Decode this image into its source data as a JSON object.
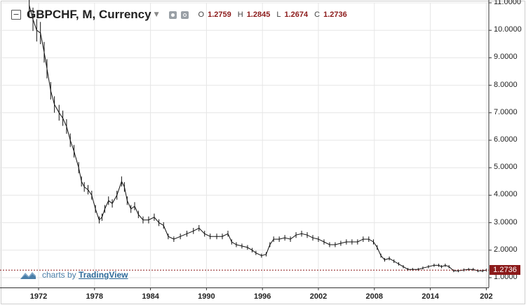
{
  "header": {
    "symbol_title": "GBPCHF, M, Currency",
    "ohlc": {
      "o_label": "O",
      "o_value": "1.2759",
      "h_label": "H",
      "h_value": "1.2845",
      "l_label": "L",
      "l_value": "1.2674",
      "c_label": "C",
      "c_value": "1.2736"
    },
    "icons": [
      "collapse-icon",
      "dropdown-caret-icon",
      "eye-icon",
      "gear-icon"
    ]
  },
  "watermark": {
    "prefix": "charts by",
    "brand": "TradingView",
    "icon": "tradingview-logo-icon"
  },
  "current_price": "1.2736",
  "colors": {
    "candles": "#111111",
    "current_line": "#8b1a1a",
    "badge": "#8b1a1a",
    "ohlc_values": "#8b1a1a",
    "grid": "#e6e6e6",
    "brand": "#2d6a9a"
  },
  "chart_data": {
    "type": "line",
    "title": "GBPCHF, M, Currency",
    "xlabel": "",
    "ylabel": "",
    "x_ticks": [
      "1972",
      "1978",
      "1984",
      "1990",
      "1996",
      "2002",
      "2008",
      "2014",
      "202"
    ],
    "y_ticks": [
      "11.0000",
      "10.0000",
      "9.0000",
      "8.0000",
      "7.0000",
      "6.0000",
      "5.0000",
      "4.0000",
      "3.0000",
      "2.0000",
      "1.0000"
    ],
    "xlim": [
      1970.0,
      2020.2
    ],
    "ylim": [
      0.9,
      11.0
    ],
    "grid": true,
    "current_value": 1.2736,
    "series": [
      {
        "values": [
          [
            1971.0,
            10.9
          ],
          [
            1971.4,
            10.4
          ],
          [
            1971.8,
            10.0
          ],
          [
            1972.2,
            9.9
          ],
          [
            1972.6,
            9.2
          ],
          [
            1972.9,
            8.6
          ],
          [
            1973.3,
            7.8
          ],
          [
            1973.7,
            7.3
          ],
          [
            1974.2,
            7.0
          ],
          [
            1974.6,
            6.8
          ],
          [
            1975.0,
            6.5
          ],
          [
            1975.4,
            6.0
          ],
          [
            1975.8,
            5.6
          ],
          [
            1976.3,
            5.0
          ],
          [
            1976.6,
            4.5
          ],
          [
            1976.9,
            4.3
          ],
          [
            1977.3,
            4.2
          ],
          [
            1977.7,
            4.0
          ],
          [
            1978.1,
            3.5
          ],
          [
            1978.5,
            3.1
          ],
          [
            1978.8,
            3.2
          ],
          [
            1979.1,
            3.5
          ],
          [
            1979.5,
            3.8
          ],
          [
            1979.9,
            3.7
          ],
          [
            1980.4,
            4.0
          ],
          [
            1980.9,
            4.5
          ],
          [
            1981.2,
            4.3
          ],
          [
            1981.5,
            3.8
          ],
          [
            1981.9,
            3.5
          ],
          [
            1982.3,
            3.6
          ],
          [
            1982.7,
            3.3
          ],
          [
            1983.2,
            3.1
          ],
          [
            1983.8,
            3.1
          ],
          [
            1984.4,
            3.2
          ],
          [
            1984.9,
            3.0
          ],
          [
            1985.4,
            2.9
          ],
          [
            1985.9,
            2.5
          ],
          [
            1986.5,
            2.4
          ],
          [
            1987.2,
            2.5
          ],
          [
            1987.9,
            2.6
          ],
          [
            1988.6,
            2.7
          ],
          [
            1989.2,
            2.8
          ],
          [
            1989.8,
            2.6
          ],
          [
            1990.4,
            2.5
          ],
          [
            1991.1,
            2.5
          ],
          [
            1991.7,
            2.5
          ],
          [
            1992.3,
            2.6
          ],
          [
            1992.7,
            2.3
          ],
          [
            1993.2,
            2.2
          ],
          [
            1993.8,
            2.15
          ],
          [
            1994.4,
            2.1
          ],
          [
            1994.9,
            2.0
          ],
          [
            1995.3,
            1.9
          ],
          [
            1995.9,
            1.8
          ],
          [
            1996.4,
            1.85
          ],
          [
            1996.8,
            2.2
          ],
          [
            1997.2,
            2.4
          ],
          [
            1997.8,
            2.4
          ],
          [
            1998.4,
            2.45
          ],
          [
            1999.0,
            2.4
          ],
          [
            1999.6,
            2.55
          ],
          [
            2000.2,
            2.6
          ],
          [
            2000.8,
            2.55
          ],
          [
            2001.4,
            2.45
          ],
          [
            2002.0,
            2.4
          ],
          [
            2002.6,
            2.3
          ],
          [
            2003.2,
            2.2
          ],
          [
            2003.8,
            2.2
          ],
          [
            2004.4,
            2.25
          ],
          [
            2005.0,
            2.3
          ],
          [
            2005.6,
            2.3
          ],
          [
            2006.2,
            2.3
          ],
          [
            2006.8,
            2.4
          ],
          [
            2007.4,
            2.4
          ],
          [
            2007.9,
            2.3
          ],
          [
            2008.3,
            2.1
          ],
          [
            2008.7,
            1.8
          ],
          [
            2009.1,
            1.65
          ],
          [
            2009.6,
            1.7
          ],
          [
            2010.1,
            1.6
          ],
          [
            2010.6,
            1.5
          ],
          [
            2011.1,
            1.4
          ],
          [
            2011.6,
            1.3
          ],
          [
            2012.1,
            1.3
          ],
          [
            2012.7,
            1.3
          ],
          [
            2013.2,
            1.35
          ],
          [
            2013.8,
            1.4
          ],
          [
            2014.4,
            1.45
          ],
          [
            2014.9,
            1.45
          ],
          [
            2015.2,
            1.4
          ],
          [
            2015.6,
            1.45
          ],
          [
            2016.0,
            1.4
          ],
          [
            2016.5,
            1.25
          ],
          [
            2017.0,
            1.25
          ],
          [
            2017.6,
            1.28
          ],
          [
            2018.1,
            1.3
          ],
          [
            2018.6,
            1.3
          ],
          [
            2019.1,
            1.25
          ],
          [
            2019.6,
            1.25
          ],
          [
            2020.0,
            1.2736
          ]
        ]
      }
    ]
  }
}
